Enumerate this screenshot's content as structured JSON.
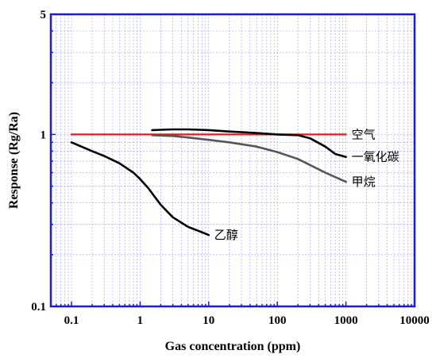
{
  "chart_data": {
    "type": "line",
    "xlabel": "Gas concentration (ppm)",
    "ylabel": "Response (Rg/Ra)",
    "x_scale": "log",
    "y_scale": "log",
    "xlim": [
      0.05,
      10000
    ],
    "ylim": [
      0.1,
      5
    ],
    "x_ticks": [
      {
        "value": 0.1,
        "label": "0.1"
      },
      {
        "value": 1,
        "label": "1"
      },
      {
        "value": 10,
        "label": "10"
      },
      {
        "value": 100,
        "label": "100"
      },
      {
        "value": 1000,
        "label": "1000"
      },
      {
        "value": 10000,
        "label": "10000"
      }
    ],
    "y_ticks": [
      {
        "value": 0.1,
        "label": "0.1"
      },
      {
        "value": 1,
        "label": "1"
      },
      {
        "value": 5,
        "label": "5"
      }
    ],
    "grid": true,
    "series": [
      {
        "name": "空气",
        "color": "#e41a1c",
        "x": [
          0.1,
          1000
        ],
        "y": [
          1.0,
          1.0
        ]
      },
      {
        "name": "一氧化碳",
        "color": "#000000",
        "x": [
          1.5,
          2,
          3,
          5,
          10,
          20,
          50,
          100,
          200,
          300,
          500,
          700,
          1000
        ],
        "y": [
          1.06,
          1.065,
          1.07,
          1.07,
          1.06,
          1.04,
          1.02,
          1.0,
          0.99,
          0.95,
          0.85,
          0.77,
          0.74
        ]
      },
      {
        "name": "甲烷",
        "color": "#555555",
        "x": [
          1.5,
          3,
          5,
          10,
          20,
          50,
          100,
          200,
          500,
          1000
        ],
        "y": [
          0.99,
          0.98,
          0.96,
          0.93,
          0.9,
          0.85,
          0.79,
          0.72,
          0.6,
          0.53
        ]
      },
      {
        "name": "乙醇",
        "color": "#000000",
        "x": [
          0.1,
          0.2,
          0.3,
          0.5,
          0.8,
          1,
          1.3,
          2,
          3,
          5,
          8,
          10
        ],
        "y": [
          0.9,
          0.8,
          0.75,
          0.68,
          0.6,
          0.55,
          0.49,
          0.39,
          0.33,
          0.29,
          0.27,
          0.26
        ]
      }
    ]
  }
}
